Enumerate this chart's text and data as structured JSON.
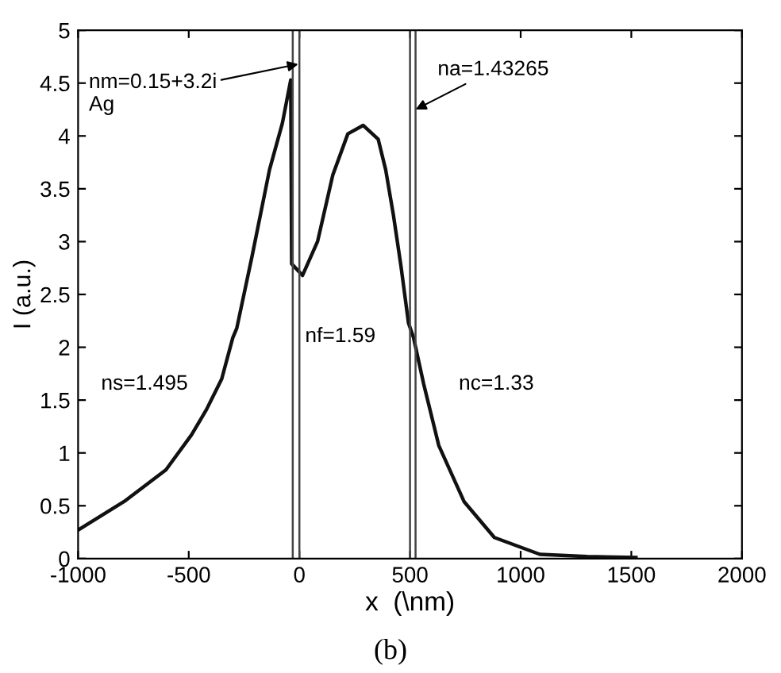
{
  "chart_data": {
    "type": "line",
    "xlabel": "x  (\\nm)",
    "ylabel": "I (a.u.)",
    "xlim": [
      -1000,
      2000
    ],
    "xticks": [
      -1000,
      -500,
      0,
      500,
      1000,
      1500,
      2000
    ],
    "ylim": [
      0,
      5
    ],
    "yticks": [
      0,
      0.5,
      1,
      1.5,
      2,
      2.5,
      3,
      3.5,
      4,
      4.5,
      5
    ],
    "grid": false,
    "marker": "none",
    "line_style": "solid",
    "series": [
      {
        "color": "#111111",
        "x": [
          -1000,
          -792,
          -603,
          -488,
          -420,
          -351,
          -301,
          -283,
          -214,
          -135,
          -77,
          -39,
          -35,
          14,
          82,
          151,
          219,
          288,
          356,
          390,
          425,
          459,
          493,
          516,
          562,
          630,
          744,
          881,
          1087,
          1300,
          1521
        ],
        "values": [
          0.27,
          0.54,
          0.84,
          1.17,
          1.41,
          1.7,
          2.09,
          2.18,
          2.86,
          3.68,
          4.12,
          4.53,
          2.79,
          2.68,
          3.0,
          3.63,
          4.02,
          4.1,
          3.97,
          3.68,
          3.25,
          2.77,
          2.23,
          2.09,
          1.65,
          1.07,
          0.54,
          0.2,
          0.04,
          0.02,
          0.01
        ]
      }
    ],
    "ref_lines": [
      {
        "axis": "x",
        "value": -30,
        "color": "#444444"
      },
      {
        "axis": "x",
        "value": 0,
        "color": "#444444"
      },
      {
        "axis": "x",
        "value": 500,
        "color": "#444444"
      },
      {
        "axis": "x",
        "value": 525,
        "color": "#444444"
      }
    ],
    "annotations": [
      {
        "text": "nm=0.15+3.2i\nAg",
        "x": -5,
        "y": 4.68
      },
      {
        "text": "na=1.43265",
        "x": 525,
        "y": 4.25
      },
      "nf=1.59",
      "ns=1.495",
      "nc=1.33",
      "(b)"
    ]
  }
}
